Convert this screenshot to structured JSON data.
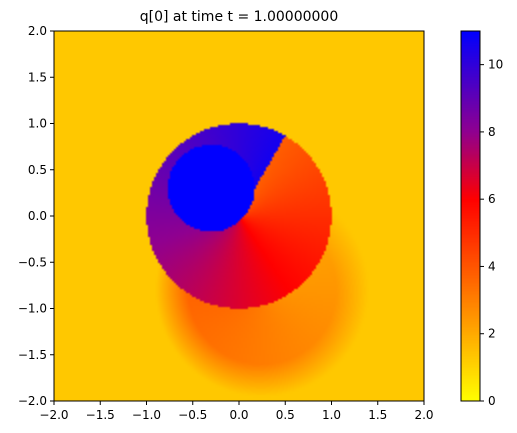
{
  "chart_data": {
    "type": "heatmap",
    "title": "q[0] at time t =     1.00000000",
    "xlabel": "",
    "ylabel": "",
    "xlim": [
      -2.0,
      2.0
    ],
    "ylim": [
      -2.0,
      2.0
    ],
    "x_ticks": [
      -2.0,
      -1.5,
      -1.0,
      -0.5,
      0.0,
      0.5,
      1.0,
      1.5,
      2.0
    ],
    "x_tick_labels": [
      "−2.0",
      "−1.5",
      "−1.0",
      "−0.5",
      "0.0",
      "0.5",
      "1.0",
      "1.5",
      "2.0"
    ],
    "y_ticks": [
      2.0,
      1.5,
      1.0,
      0.5,
      0.0,
      -0.5,
      -1.0,
      -1.5,
      -2.0
    ],
    "y_tick_labels": [
      "2.0",
      "1.5",
      "1.0",
      "0.5",
      "0.0",
      "−0.5",
      "−1.0",
      "−1.5",
      "−2.0"
    ],
    "grid": false,
    "colorbar": {
      "range": [
        0,
        11
      ],
      "ticks": [
        0,
        2,
        4,
        6,
        8,
        10
      ],
      "tick_labels": [
        "0",
        "2",
        "4",
        "6",
        "8",
        "10"
      ],
      "colormap": [
        {
          "value": 0,
          "color": "#ffff00"
        },
        {
          "value": 2,
          "color": "#ffaa00"
        },
        {
          "value": 4.5,
          "color": "#ff4000"
        },
        {
          "value": 6,
          "color": "#ff0000"
        },
        {
          "value": 8,
          "color": "#900090"
        },
        {
          "value": 11,
          "color": "#0000ff"
        }
      ]
    },
    "field": {
      "background_value": 1.3,
      "inner_blob": {
        "center": [
          -0.3,
          0.3
        ],
        "radius": 0.47,
        "value": 11.0
      },
      "main_disk": {
        "center": [
          0.0,
          0.0
        ],
        "radius": 1.0,
        "value_min": 3.8,
        "value_max": 10.6
      },
      "spiral_tail": {
        "center": [
          0.25,
          -0.8
        ],
        "radius": 1.15,
        "value_min": 1.6,
        "value_max": 4.0
      }
    }
  }
}
